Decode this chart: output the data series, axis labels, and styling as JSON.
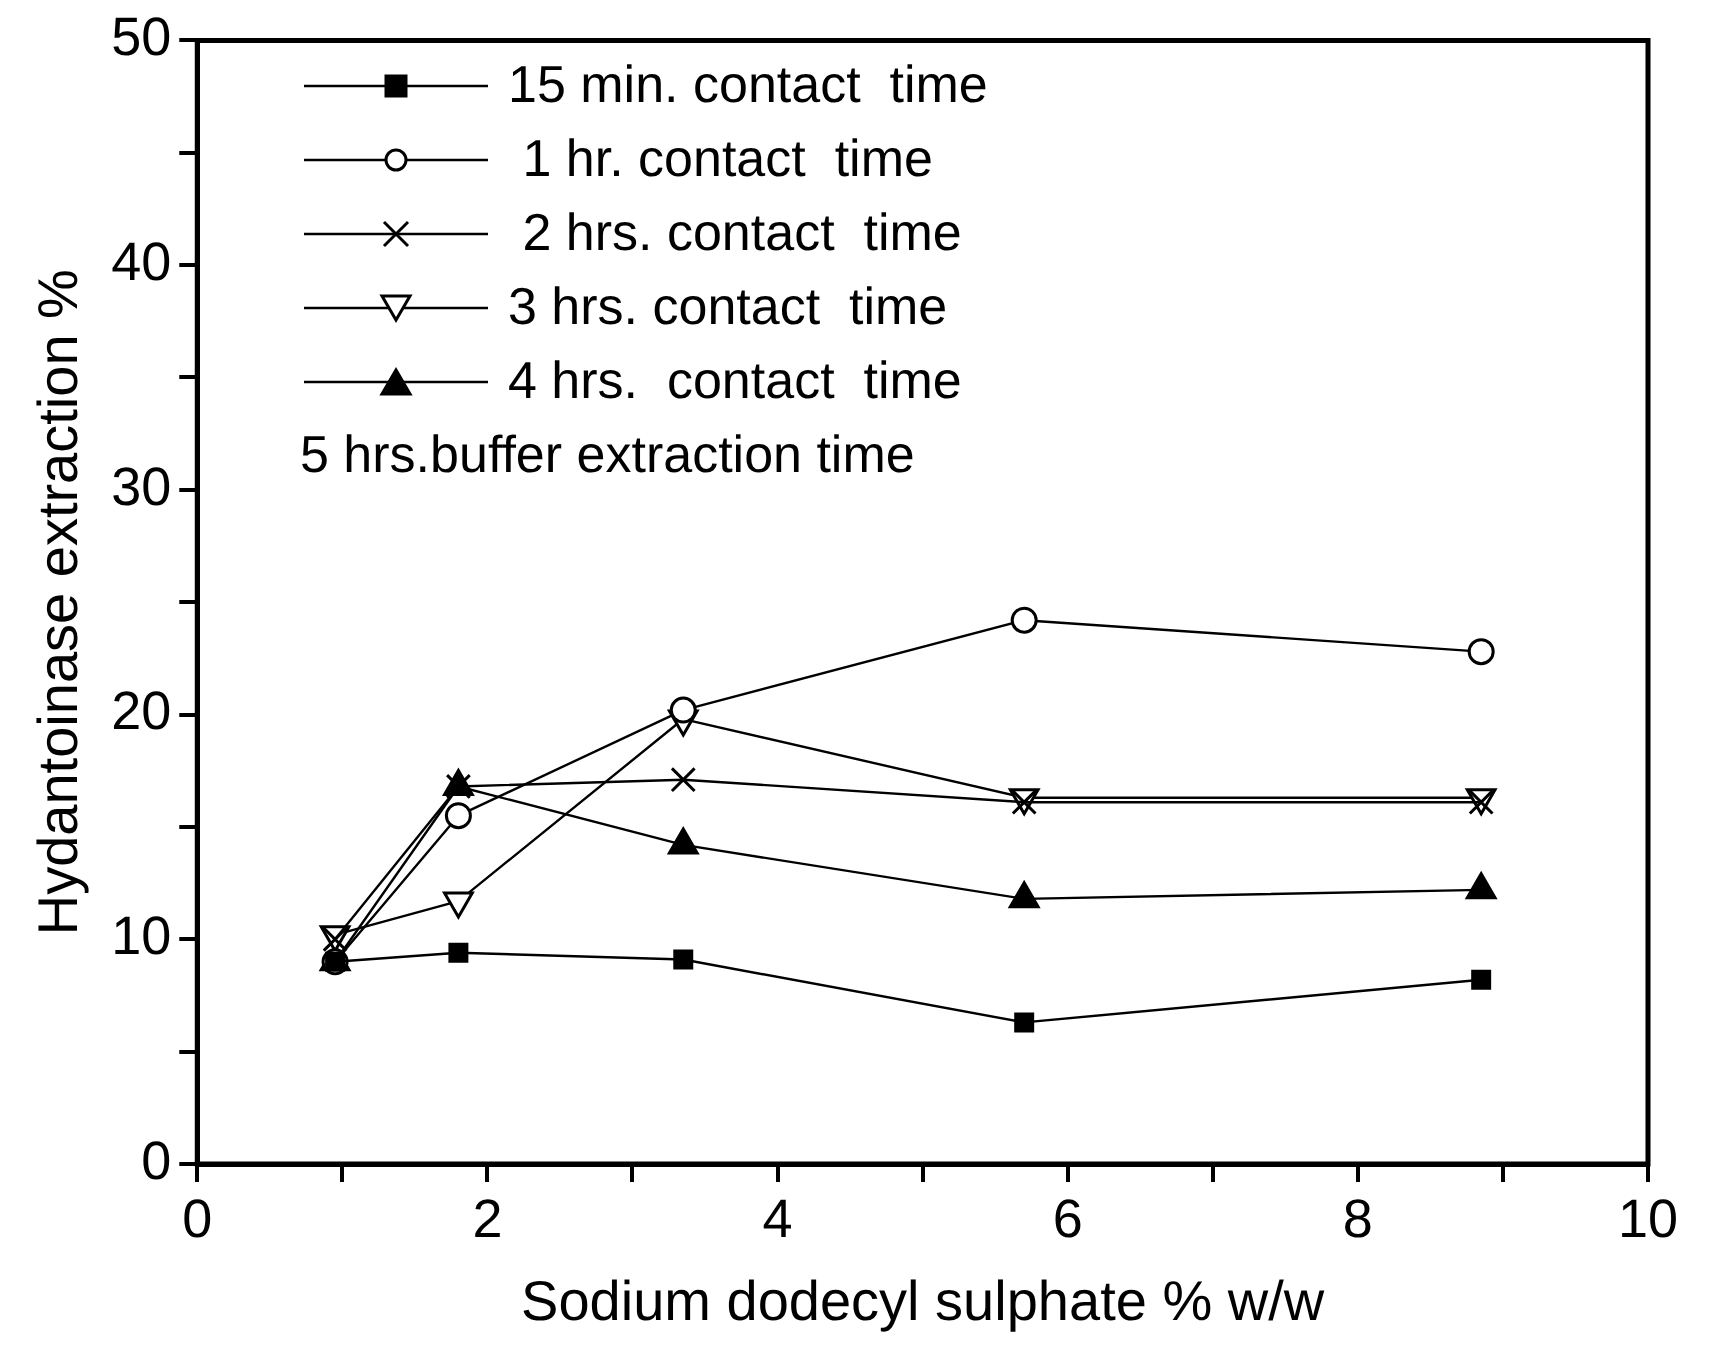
{
  "chart_data": {
    "type": "line",
    "xlabel": "Sodium dodecyl sulphate % w/w",
    "ylabel": "Hydantoinase extraction %",
    "x": [
      0.95,
      1.8,
      3.35,
      5.7,
      8.85
    ],
    "series": [
      {
        "name": "15 min. contact  time",
        "color": "#000000",
        "marker": "square",
        "values": [
          9.0,
          9.4,
          9.1,
          6.3,
          8.2
        ]
      },
      {
        "name": " 1 hr. contact  time",
        "color": "#000000",
        "marker": "circle",
        "values": [
          9.0,
          15.5,
          20.2,
          24.2,
          22.8
        ]
      },
      {
        "name": " 2 hrs. contact  time",
        "color": "#000000",
        "marker": "cross",
        "values": [
          10.0,
          16.8,
          17.1,
          16.1,
          16.1
        ]
      },
      {
        "name": "3 hrs. contact  time",
        "color": "#000000",
        "marker": "triangle-down",
        "values": [
          10.2,
          11.7,
          19.8,
          16.3,
          16.3
        ]
      },
      {
        "name": "4 hrs.  contact  time",
        "color": "#000000",
        "marker": "triangle",
        "values": [
          9.0,
          16.8,
          14.2,
          11.8,
          12.2
        ]
      }
    ],
    "annotations": [
      "5 hrs.buffer extraction time"
    ],
    "xlim": [
      0,
      10
    ],
    "xticks": [
      0,
      {
        "value": 1,
        "label": null
      },
      2,
      {
        "value": 3,
        "label": null
      },
      4,
      {
        "value": 5,
        "label": null
      },
      6,
      {
        "value": 7,
        "label": null
      },
      8,
      {
        "value": 9,
        "label": null
      },
      10
    ],
    "ylim": [
      0,
      50
    ],
    "yticks": [
      0,
      {
        "value": 5,
        "label": null
      },
      10,
      {
        "value": 15,
        "label": null
      },
      20,
      {
        "value": 25,
        "label": null
      },
      30,
      {
        "value": 35,
        "label": null
      },
      40,
      {
        "value": 45,
        "label": null
      },
      50
    ],
    "grid": false,
    "legend": "top left",
    "line_style": "solid"
  }
}
